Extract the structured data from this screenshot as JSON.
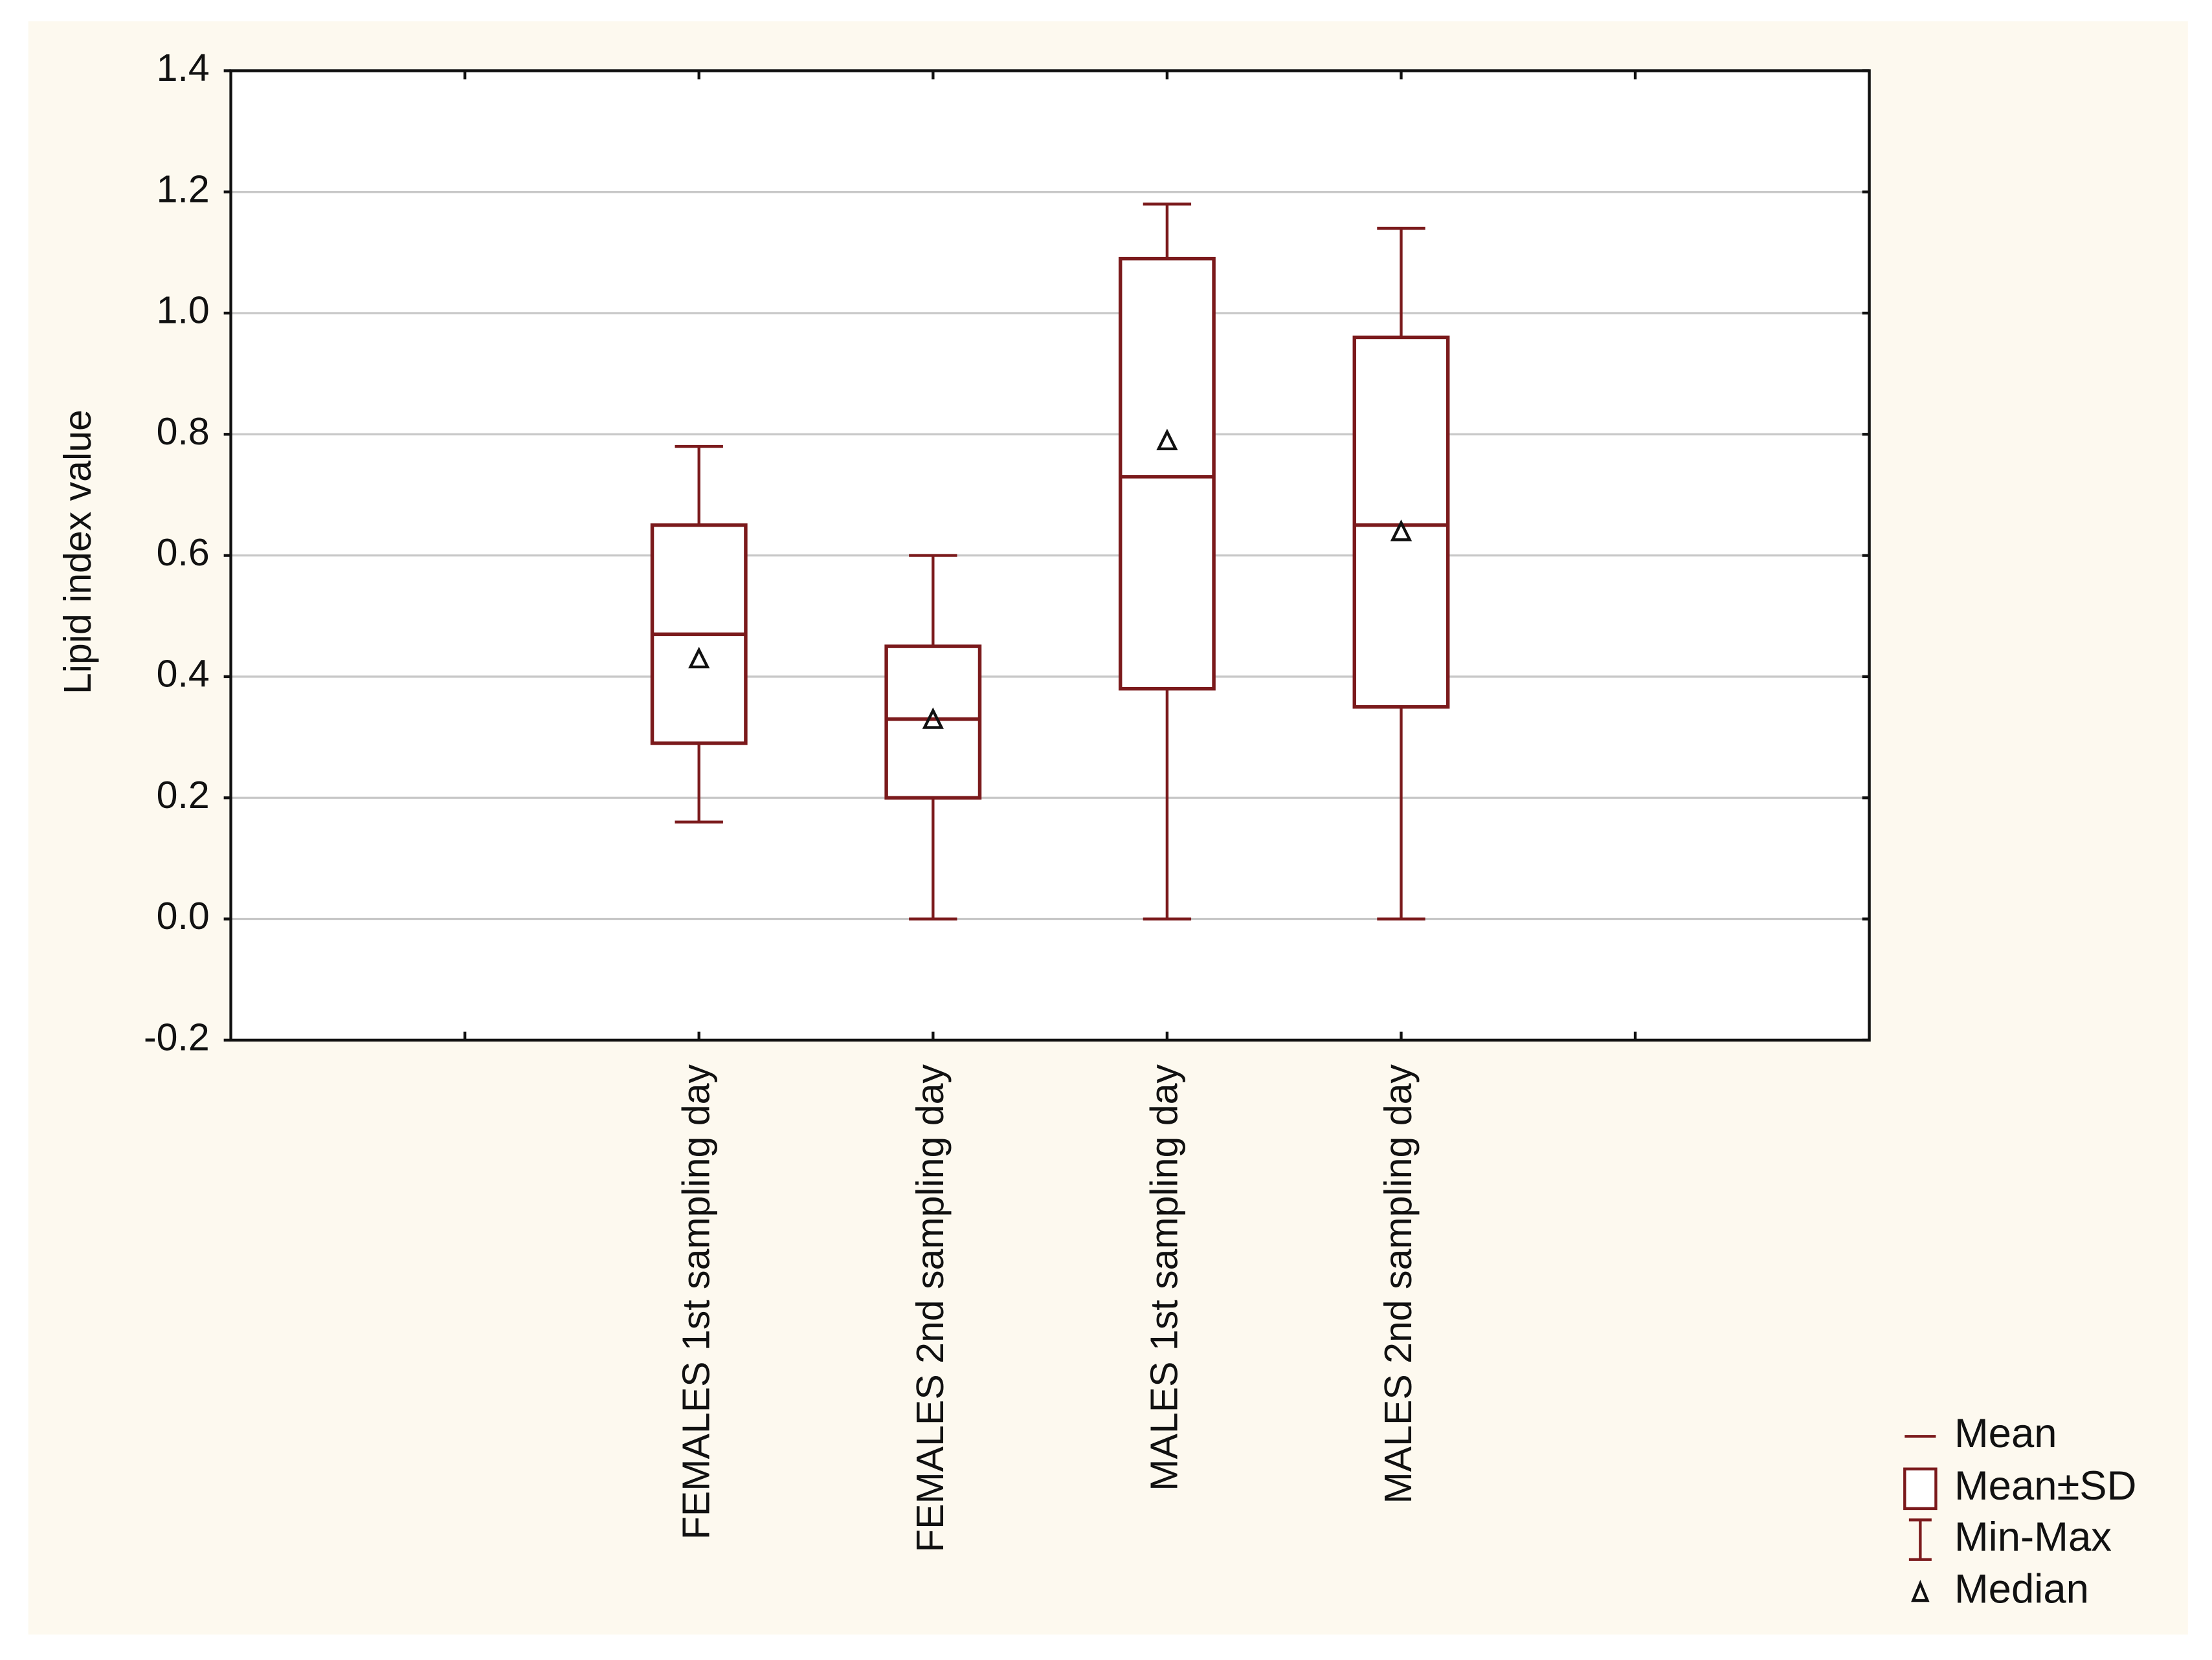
{
  "chart_data": {
    "type": "box",
    "y_label": "Lipid index value",
    "categories": [
      null,
      "FEMALES 1st sampling day",
      "FEMALES 2nd sampling day",
      "MALES 1st sampling day",
      "MALES 2nd sampling day",
      null
    ],
    "color": "#7b1a1c",
    "series": [
      {
        "name": "Mean",
        "values": [
          null,
          0.47,
          0.33,
          0.73,
          0.65,
          null
        ]
      },
      {
        "name": "Mean±SD",
        "low": [
          null,
          0.29,
          0.2,
          0.38,
          0.35,
          null
        ],
        "high": [
          null,
          0.65,
          0.45,
          1.09,
          0.96,
          null
        ]
      },
      {
        "name": "Min-Max",
        "low": [
          null,
          0.16,
          0,
          0,
          0,
          null
        ],
        "high": [
          null,
          0.78,
          0.6,
          1.18,
          1.14,
          null
        ]
      },
      {
        "name": "Median",
        "values": [
          null,
          0.43,
          0.33,
          0.79,
          0.64,
          null
        ]
      }
    ],
    "ylim": [
      -0.2,
      1.4
    ],
    "yticks": [
      -0.2,
      {
        "value": 0,
        "label": "0.0"
      },
      0.2,
      0.4,
      0.6,
      0.8,
      {
        "value": 1,
        "label": "1.0"
      },
      1.2,
      1.4
    ],
    "grid": true
  }
}
